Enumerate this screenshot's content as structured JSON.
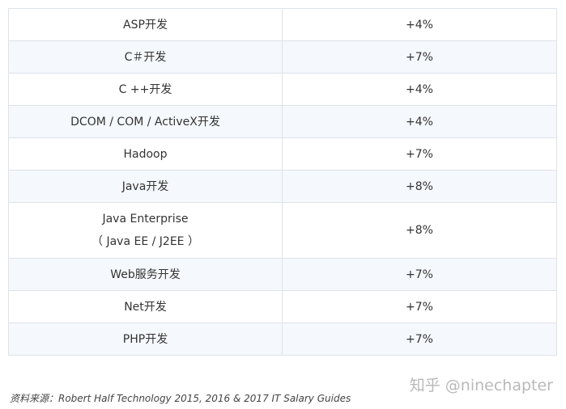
{
  "table": {
    "rows": [
      [
        "ASP开发",
        "+4%"
      ],
      [
        "C＃开发",
        "+7%"
      ],
      [
        "C ++开发",
        "+4%"
      ],
      [
        "DCOM / COM / ActiveX开发",
        "+4%"
      ],
      [
        "Hadoop",
        "+7%"
      ],
      [
        "Java开发",
        "+8%"
      ],
      [
        [
          "Java Enterprise",
          "（ Java EE / J2EE ）"
        ],
        "+8%"
      ],
      [
        "Web服务开发",
        "+7%"
      ],
      [
        "Net开发",
        "+7%"
      ],
      [
        "PHP开发",
        "+7%"
      ]
    ]
  },
  "source": "资料来源：Robert Half Technology 2015, 2016 & 2017 IT Salary Guides",
  "watermark": "知乎 @ninechapter"
}
